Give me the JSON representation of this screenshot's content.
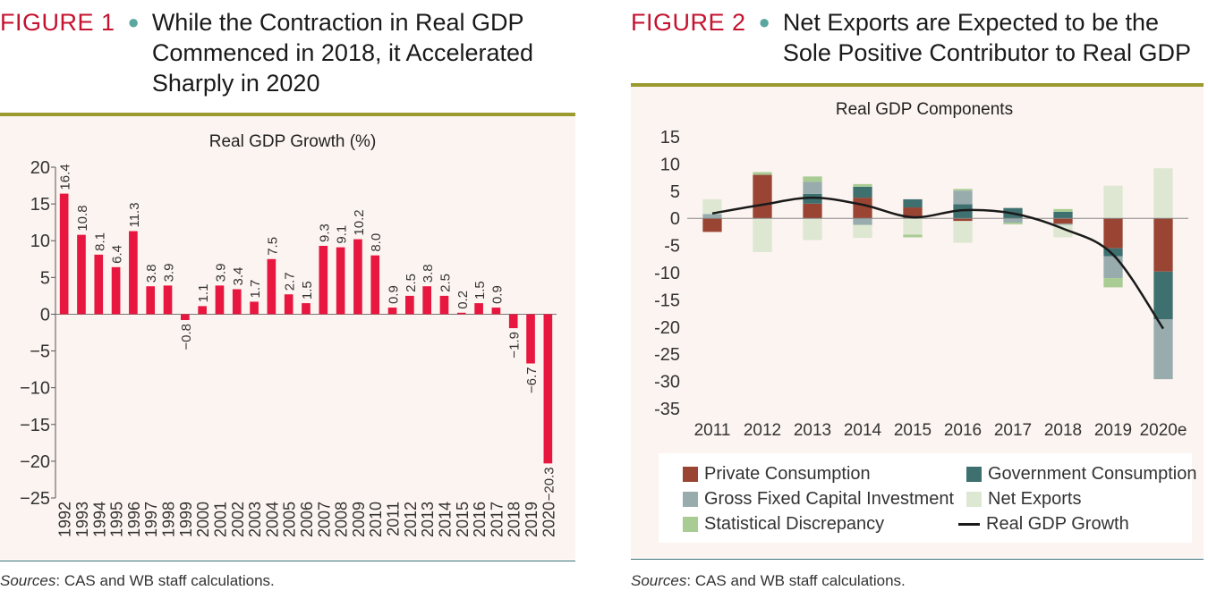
{
  "figure1": {
    "number": "FIGURE 1",
    "title": "While the Contraction in Real GDP Commenced in 2018, it Accelerated Sharply in 2020",
    "source_label": "Sources",
    "source_text": ": CAS and WB staff calculations."
  },
  "figure2": {
    "number": "FIGURE 2",
    "title": "Net Exports are Expected to be the Sole Positive Contributor to Real GDP",
    "source_label": "Sources",
    "source_text": ": CAS and WB staff calculations."
  },
  "chart_data": [
    {
      "type": "bar",
      "title": "Real GDP Growth (%)",
      "xlabel": "",
      "ylabel": "",
      "ylim": [
        -25,
        20
      ],
      "yticks": [
        20,
        15,
        10,
        5,
        0,
        -5,
        -10,
        -15,
        -20,
        -25
      ],
      "ytick_labels": [
        "20",
        "15",
        "10",
        "5",
        "0",
        "−5",
        "−10",
        "−15",
        "−20",
        "−25"
      ],
      "categories": [
        "1992",
        "1993",
        "1994",
        "1995",
        "1996",
        "1997",
        "1998",
        "1999",
        "2000",
        "2001",
        "2002",
        "2003",
        "2004",
        "2005",
        "2006",
        "2007",
        "2008",
        "2009",
        "2010",
        "2011",
        "2012",
        "2013",
        "2014",
        "2015",
        "2016",
        "2017",
        "2018",
        "2019",
        "2020"
      ],
      "values": [
        16.4,
        10.8,
        8.1,
        6.4,
        11.3,
        3.8,
        3.9,
        -0.8,
        1.1,
        3.9,
        3.4,
        1.7,
        7.5,
        2.7,
        1.5,
        9.3,
        9.1,
        10.2,
        8.0,
        0.9,
        2.5,
        3.8,
        2.5,
        0.2,
        1.5,
        0.9,
        -1.9,
        -6.7,
        -20.3
      ],
      "value_labels": [
        "16.4",
        "10.8",
        "8.1",
        "6.4",
        "11.3",
        "3.8",
        "3.9",
        "−0.8",
        "1.1",
        "3.9",
        "3.4",
        "1.7",
        "7.5",
        "2.7",
        "1.5",
        "9.3",
        "9.1",
        "10.2",
        "8.0",
        "0.9",
        "2.5",
        "3.8",
        "2.5",
        "0.2",
        "1.5",
        "0.9",
        "−1.9",
        "−6.7",
        "−20.3"
      ],
      "bar_color": "#e8173f",
      "grid": false
    },
    {
      "type": "bar",
      "stacked": true,
      "title": "Real GDP Components",
      "xlabel": "",
      "ylabel": "",
      "ylim": [
        -35,
        15
      ],
      "yticks": [
        15,
        10,
        5,
        0,
        -5,
        -10,
        -15,
        -20,
        -25,
        -30,
        -35
      ],
      "ytick_labels": [
        "15",
        "10",
        "5",
        "0",
        "-5",
        "-10",
        "-15",
        "-20",
        "-25",
        "-30",
        "-35"
      ],
      "categories": [
        "2011",
        "2012",
        "2013",
        "2014",
        "2015",
        "2016",
        "2017",
        "2018",
        "2019",
        "2020e"
      ],
      "series": [
        {
          "name": "Private Consumption",
          "color": "#9a4534",
          "values": [
            -2.5,
            8.0,
            2.7,
            3.8,
            2.0,
            -0.5,
            0.0,
            -1.0,
            -5.5,
            -9.8
          ]
        },
        {
          "name": "Government Consumption",
          "color": "#3e7070",
          "values": [
            0.0,
            0.0,
            1.8,
            2.0,
            1.5,
            2.6,
            1.9,
            1.2,
            -1.5,
            -8.8
          ]
        },
        {
          "name": "Gross Fixed Capital Investment",
          "color": "#98acae",
          "values": [
            0.8,
            0.0,
            2.2,
            -1.2,
            0.0,
            2.5,
            -0.8,
            -0.2,
            -4.0,
            -11.0
          ]
        },
        {
          "name": "Net Exports",
          "color": "#dde7d1",
          "values": [
            2.7,
            -6.2,
            -4.0,
            -2.4,
            -3.0,
            -4.0,
            0.0,
            -2.3,
            6.0,
            9.2
          ]
        },
        {
          "name": "Statistical Discrepancy",
          "color": "#a9cc94",
          "values": [
            0.0,
            0.5,
            1.0,
            0.5,
            -0.5,
            0.3,
            -0.3,
            0.5,
            -1.7,
            0.0
          ]
        }
      ],
      "line": {
        "name": "Real GDP Growth",
        "color": "#1a1a1a",
        "values": [
          0.9,
          2.5,
          3.8,
          2.5,
          0.2,
          1.5,
          0.9,
          -1.9,
          -6.7,
          -20.3
        ]
      },
      "legend_position": "bottom",
      "grid": false
    }
  ]
}
